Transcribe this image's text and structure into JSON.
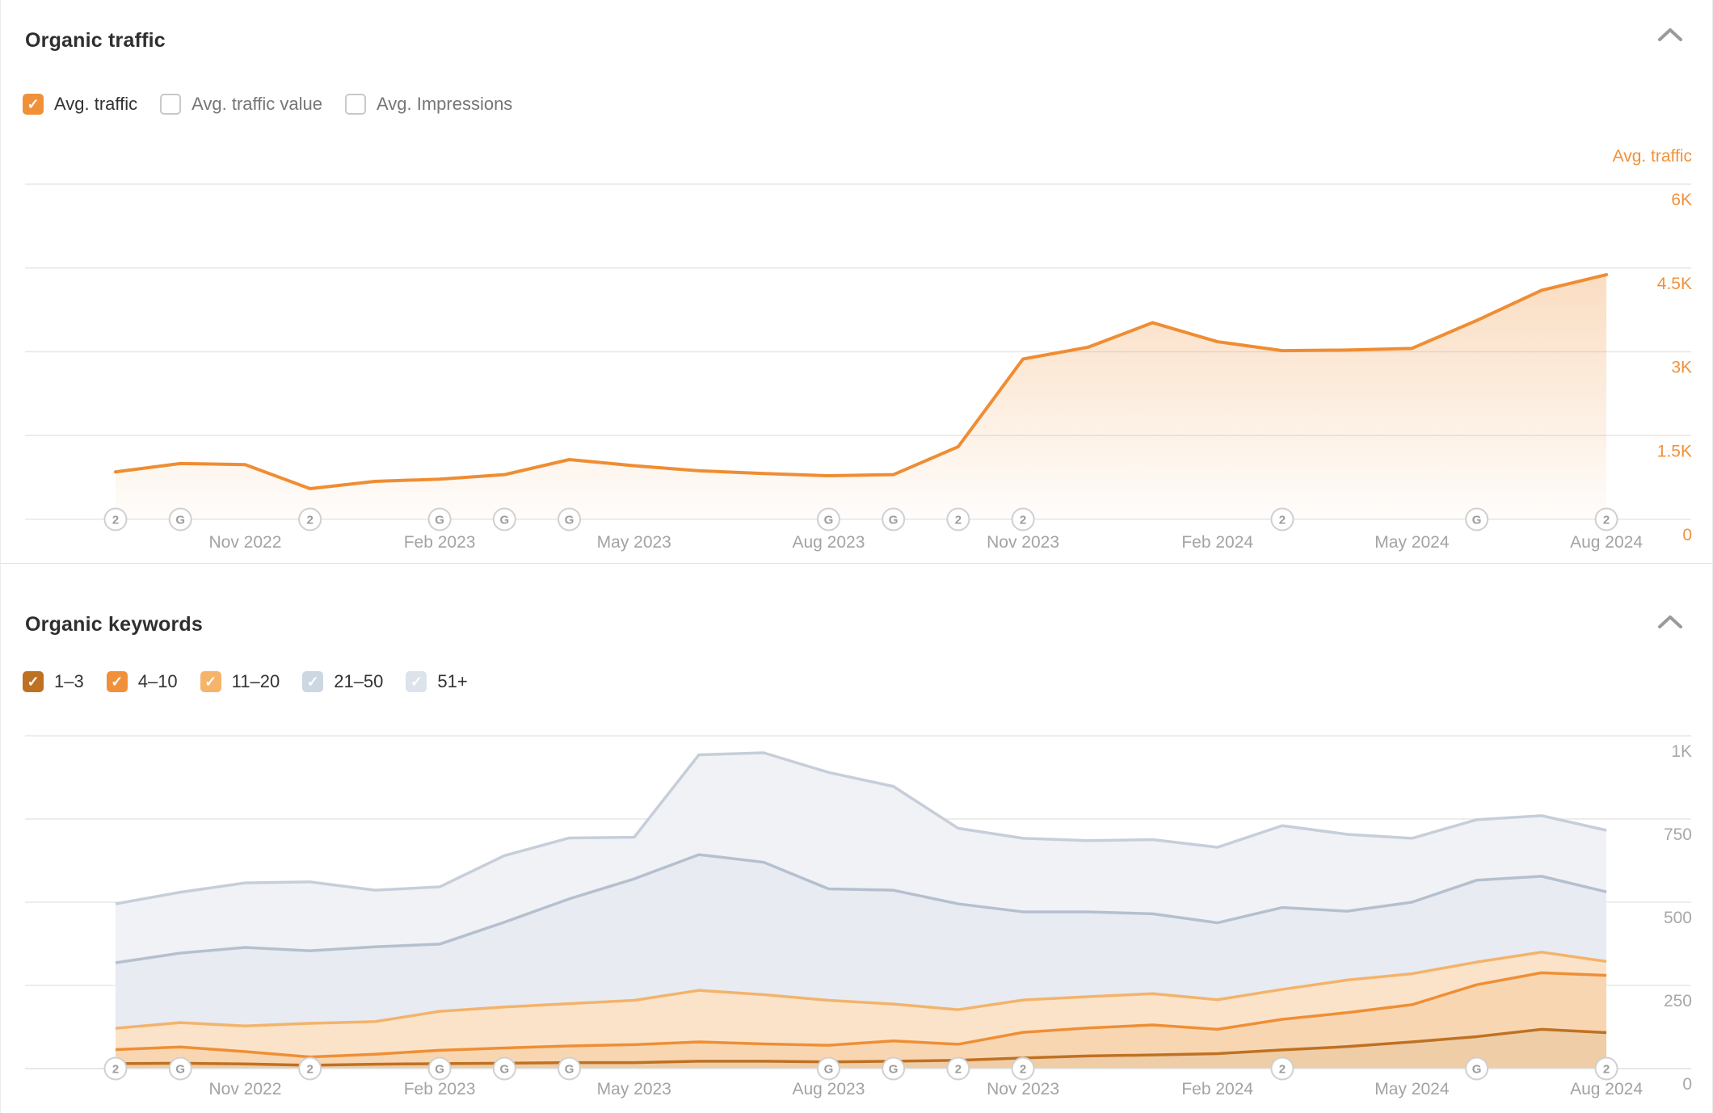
{
  "accent_color": "#ef8d33",
  "panels": {
    "traffic": {
      "title": "Organic traffic",
      "legend": [
        {
          "label": "Avg. traffic",
          "checked": true,
          "color": "#f0913a"
        },
        {
          "label": "Avg. traffic value",
          "checked": false,
          "color": null
        },
        {
          "label": "Avg. Impressions",
          "checked": false,
          "color": null
        }
      ]
    },
    "keywords": {
      "title": "Organic keywords",
      "legend": [
        {
          "label": "1–3",
          "checked": true,
          "color": "#bf7123"
        },
        {
          "label": "4–10",
          "checked": true,
          "color": "#f0913a"
        },
        {
          "label": "11–20",
          "checked": true,
          "color": "#f5b469"
        },
        {
          "label": "21–50",
          "checked": true,
          "color": "#ccd7e2"
        },
        {
          "label": "51+",
          "checked": true,
          "color": "#dce3eb"
        }
      ]
    }
  },
  "chart_data": [
    {
      "type": "area",
      "title": "Organic traffic",
      "axis_title": "Avg. traffic",
      "axis_title_color": "#f0913a",
      "x": [
        "Sep 2022",
        "Oct 2022",
        "Nov 2022",
        "Dec 2022",
        "Jan 2023",
        "Feb 2023",
        "Mar 2023",
        "Apr 2023",
        "May 2023",
        "Jun 2023",
        "Jul 2023",
        "Aug 2023",
        "Sep 2023",
        "Oct 2023",
        "Nov 2023",
        "Dec 2023",
        "Jan 2024",
        "Feb 2024",
        "Mar 2024",
        "Apr 2024",
        "May 2024",
        "Jun 2024",
        "Jul 2024",
        "Aug 2024"
      ],
      "series": [
        {
          "name": "Avg. traffic",
          "color": "#ef8d33",
          "values": [
            850,
            1000,
            980,
            550,
            680,
            720,
            800,
            1070,
            960,
            870,
            820,
            780,
            800,
            1300,
            2870,
            3080,
            3520,
            3180,
            3020,
            3030,
            3060,
            3560,
            4100,
            4380
          ]
        }
      ],
      "ylim": [
        0,
        6200
      ],
      "grid": true,
      "yticks": [
        {
          "value": 6000,
          "label": "6K"
        },
        {
          "value": 4500,
          "label": "4.5K"
        },
        {
          "value": 3000,
          "label": "3K"
        },
        {
          "value": 1500,
          "label": "1.5K"
        },
        {
          "value": 0,
          "label": "0"
        }
      ],
      "ytick_color": "#f0913a",
      "xticks": [
        {
          "index": 2,
          "label": "Nov 2022"
        },
        {
          "index": 5,
          "label": "Feb 2023"
        },
        {
          "index": 8,
          "label": "May 2023"
        },
        {
          "index": 11,
          "label": "Aug 2023"
        },
        {
          "index": 14,
          "label": "Nov 2023"
        },
        {
          "index": 17,
          "label": "Feb 2024"
        },
        {
          "index": 20,
          "label": "May 2024"
        },
        {
          "index": 23,
          "label": "Aug 2024"
        }
      ],
      "markers": [
        {
          "index": 0,
          "letter": "2"
        },
        {
          "index": 1,
          "letter": "G"
        },
        {
          "index": 3,
          "letter": "2"
        },
        {
          "index": 5,
          "letter": "G"
        },
        {
          "index": 6,
          "letter": "G"
        },
        {
          "index": 7,
          "letter": "G"
        },
        {
          "index": 11,
          "letter": "G"
        },
        {
          "index": 12,
          "letter": "G"
        },
        {
          "index": 13,
          "letter": "2"
        },
        {
          "index": 14,
          "letter": "2"
        },
        {
          "index": 18,
          "letter": "2"
        },
        {
          "index": 21,
          "letter": "G"
        },
        {
          "index": 23,
          "letter": "2"
        }
      ]
    },
    {
      "type": "stacked-area",
      "title": "Organic keywords",
      "x": [
        "Sep 2022",
        "Oct 2022",
        "Nov 2022",
        "Dec 2022",
        "Jan 2023",
        "Feb 2023",
        "Mar 2023",
        "Apr 2023",
        "May 2023",
        "Jun 2023",
        "Jul 2023",
        "Aug 2023",
        "Sep 2023",
        "Oct 2023",
        "Nov 2023",
        "Dec 2023",
        "Jan 2024",
        "Feb 2024",
        "Mar 2024",
        "Apr 2024",
        "May 2024",
        "Jun 2024",
        "Jul 2024",
        "Aug 2024"
      ],
      "series": [
        {
          "name": "1–3",
          "stroke": "#bf7123",
          "fill": "#efcda6",
          "values": [
            15,
            16,
            14,
            10,
            13,
            15,
            16,
            18,
            18,
            22,
            22,
            20,
            22,
            25,
            32,
            38,
            41,
            45,
            56,
            66,
            80,
            96,
            118,
            108
          ]
        },
        {
          "name": "4–10",
          "stroke": "#ee8f35",
          "fill": "#f9d6b2",
          "values": [
            42,
            49,
            37,
            25,
            30,
            40,
            46,
            50,
            54,
            58,
            52,
            50,
            61,
            48,
            77,
            84,
            90,
            73,
            92,
            102,
            112,
            156,
            170,
            172
          ]
        },
        {
          "name": "11–20",
          "stroke": "#f3b36c",
          "fill": "#fbe3c9",
          "values": [
            64,
            73,
            77,
            101,
            98,
            117,
            123,
            127,
            133,
            155,
            148,
            135,
            111,
            104,
            97,
            94,
            94,
            89,
            90,
            98,
            93,
            68,
            62,
            42
          ]
        },
        {
          "name": "21–50",
          "stroke": "#b5c0ce",
          "fill": "#e8ebf1",
          "values": [
            197,
            209,
            236,
            218,
            225,
            202,
            255,
            315,
            365,
            408,
            398,
            335,
            342,
            318,
            265,
            255,
            240,
            231,
            246,
            207,
            215,
            246,
            228,
            209
          ]
        },
        {
          "name": "51+",
          "stroke": "#c6ced9",
          "fill": "#f0f2f6",
          "values": [
            177,
            183,
            194,
            207,
            170,
            172,
            200,
            183,
            125,
            300,
            329,
            350,
            312,
            227,
            221,
            214,
            223,
            227,
            246,
            231,
            192,
            182,
            182,
            185
          ]
        }
      ],
      "ylim": [
        0,
        1080
      ],
      "grid": true,
      "yticks": [
        {
          "value": 1000,
          "label": "1K"
        },
        {
          "value": 750,
          "label": "750"
        },
        {
          "value": 500,
          "label": "500"
        },
        {
          "value": 250,
          "label": "250"
        },
        {
          "value": 0,
          "label": "0"
        }
      ],
      "ytick_color": "#a8a8a8",
      "xticks": [
        {
          "index": 2,
          "label": "Nov 2022"
        },
        {
          "index": 5,
          "label": "Feb 2023"
        },
        {
          "index": 8,
          "label": "May 2023"
        },
        {
          "index": 11,
          "label": "Aug 2023"
        },
        {
          "index": 14,
          "label": "Nov 2023"
        },
        {
          "index": 17,
          "label": "Feb 2024"
        },
        {
          "index": 20,
          "label": "May 2024"
        },
        {
          "index": 23,
          "label": "Aug 2024"
        }
      ],
      "markers": [
        {
          "index": 0,
          "letter": "2"
        },
        {
          "index": 1,
          "letter": "G"
        },
        {
          "index": 3,
          "letter": "2"
        },
        {
          "index": 5,
          "letter": "G"
        },
        {
          "index": 6,
          "letter": "G"
        },
        {
          "index": 7,
          "letter": "G"
        },
        {
          "index": 11,
          "letter": "G"
        },
        {
          "index": 12,
          "letter": "G"
        },
        {
          "index": 13,
          "letter": "2"
        },
        {
          "index": 14,
          "letter": "2"
        },
        {
          "index": 18,
          "letter": "2"
        },
        {
          "index": 21,
          "letter": "G"
        },
        {
          "index": 23,
          "letter": "2"
        }
      ]
    }
  ]
}
